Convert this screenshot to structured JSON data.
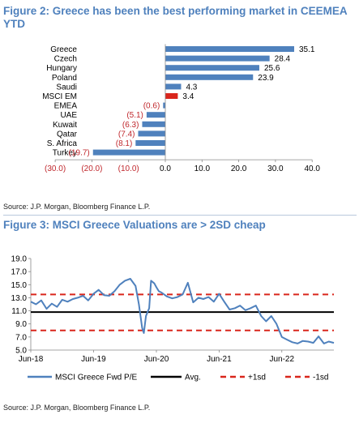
{
  "figure2": {
    "title": "Figure 2: Greece has been the best performing market in CEEMEA YTD",
    "source": "Source: J.P. Morgan, Bloomberg Finance L.P.",
    "chart_data": {
      "type": "bar",
      "orientation": "horizontal",
      "categories": [
        "Greece",
        "Czech",
        "Hungary",
        "Poland",
        "Saudi",
        "MSCI EM",
        "EMEA",
        "UAE",
        "Kuwait",
        "Qatar",
        "S. Africa",
        "Turkey"
      ],
      "values": [
        35.1,
        28.4,
        25.6,
        23.9,
        4.3,
        3.4,
        -0.6,
        -5.1,
        -6.3,
        -7.4,
        -8.1,
        -19.7
      ],
      "data_labels": [
        "35.1",
        "28.4",
        "25.6",
        "23.9",
        "4.3",
        "3.4",
        "(0.6)",
        "(5.1)",
        "(6.3)",
        "(7.4)",
        "(8.1)",
        "(19.7)"
      ],
      "highlight_category": "MSCI EM",
      "xlim": [
        -30,
        40
      ],
      "xticks": [
        -30,
        -20,
        -10,
        0,
        10,
        20,
        30,
        40
      ],
      "xtick_labels": [
        "(30.0)",
        "(20.0)",
        "(10.0)",
        "0.0",
        "10.0",
        "20.0",
        "30.0",
        "40.0"
      ],
      "colors": {
        "bar": "#4f81bd",
        "highlight": "#d9261c",
        "negative_label": "#c0282d"
      }
    }
  },
  "figure3": {
    "title": "Figure 3: MSCI Greece Valuations are > 2SD cheap",
    "source": "Source: J.P. Morgan, Bloomberg Finance L.P.",
    "chart_data": {
      "type": "line",
      "ylim": [
        5.0,
        19.0
      ],
      "yticks": [
        5.0,
        7.0,
        9.0,
        11.0,
        13.0,
        15.0,
        17.0,
        19.0
      ],
      "ytick_labels": [
        "5.0",
        "7.0",
        "9.0",
        "11.0",
        "13.0",
        "15.0",
        "17.0",
        "19.0"
      ],
      "xlim": [
        "2018-06-01",
        "2023-03-31"
      ],
      "xticks": [
        "2018-06-01",
        "2019-06-01",
        "2020-06-01",
        "2021-06-01",
        "2022-06-01"
      ],
      "xtick_labels": [
        "Jun-18",
        "Jun-19",
        "Jun-20",
        "Jun-21",
        "Jun-22"
      ],
      "series": [
        {
          "name": "MSCI Greece Fwd P/E",
          "x": [
            "2018-06-01",
            "2018-07-01",
            "2018-08-01",
            "2018-09-01",
            "2018-10-01",
            "2018-11-01",
            "2018-12-01",
            "2019-01-01",
            "2019-02-01",
            "2019-03-01",
            "2019-04-01",
            "2019-05-01",
            "2019-06-01",
            "2019-07-01",
            "2019-08-01",
            "2019-09-01",
            "2019-10-01",
            "2019-11-01",
            "2019-12-01",
            "2020-01-01",
            "2020-02-01",
            "2020-02-20",
            "2020-03-10",
            "2020-03-20",
            "2020-04-01",
            "2020-04-20",
            "2020-05-01",
            "2020-05-20",
            "2020-06-01",
            "2020-06-15",
            "2020-07-01",
            "2020-08-01",
            "2020-09-01",
            "2020-10-01",
            "2020-11-01",
            "2020-12-01",
            "2021-01-01",
            "2021-02-01",
            "2021-03-01",
            "2021-04-01",
            "2021-05-01",
            "2021-06-01",
            "2021-07-01",
            "2021-08-01",
            "2021-09-01",
            "2021-10-01",
            "2021-11-01",
            "2021-12-01",
            "2022-01-01",
            "2022-02-01",
            "2022-03-01",
            "2022-04-01",
            "2022-05-01",
            "2022-06-01",
            "2022-07-01",
            "2022-08-01",
            "2022-09-01",
            "2022-10-01",
            "2022-11-01",
            "2022-12-01",
            "2023-01-01",
            "2023-02-01",
            "2023-03-01",
            "2023-03-31"
          ],
          "y": [
            12.4,
            12.0,
            12.6,
            11.3,
            12.1,
            11.6,
            12.7,
            12.4,
            12.8,
            13.0,
            13.3,
            12.6,
            13.6,
            14.2,
            13.4,
            13.3,
            14.0,
            15.0,
            15.6,
            15.9,
            14.8,
            12.0,
            8.4,
            7.6,
            10.2,
            11.4,
            15.6,
            15.2,
            14.6,
            14.0,
            13.8,
            13.2,
            12.9,
            13.1,
            13.5,
            15.3,
            12.3,
            13.0,
            12.8,
            13.1,
            12.4,
            13.6,
            12.4,
            11.2,
            11.4,
            11.8,
            11.1,
            11.4,
            11.8,
            10.2,
            9.4,
            10.2,
            9.0,
            7.0,
            6.6,
            6.2,
            6.0,
            6.4,
            6.3,
            6.1,
            7.1,
            6.0,
            6.3,
            6.1
          ]
        },
        {
          "name": "Avg.",
          "y": 10.8
        },
        {
          "name": "+1sd",
          "y": 13.5
        },
        {
          "name": "-1sd",
          "y": 8.0
        }
      ],
      "legend_position": "bottom",
      "colors": {
        "pe": "#4f81bd",
        "avg": "#000000",
        "sd": "#d9261c"
      }
    }
  }
}
